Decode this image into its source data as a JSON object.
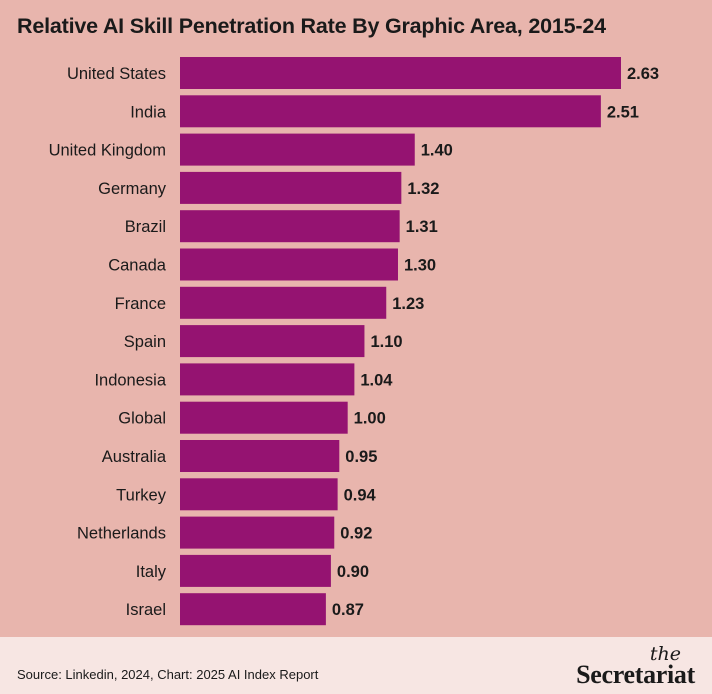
{
  "chart_data": {
    "type": "bar",
    "orientation": "horizontal",
    "title": "Relative AI Skill Penetration Rate By Graphic Area, 2015-24",
    "categories": [
      "United States",
      "India",
      "United Kingdom",
      "Germany",
      "Brazil",
      "Canada",
      "France",
      "Spain",
      "Indonesia",
      "Global",
      "Australia",
      "Turkey",
      "Netherlands",
      "Italy",
      "Israel"
    ],
    "values": [
      2.63,
      2.51,
      1.4,
      1.32,
      1.31,
      1.3,
      1.23,
      1.1,
      1.04,
      1.0,
      0.95,
      0.94,
      0.92,
      0.9,
      0.87
    ],
    "value_labels": [
      "2.63",
      "2.51",
      "1.40",
      "1.32",
      "1.31",
      "1.30",
      "1.23",
      "1.10",
      "1.04",
      "1.00",
      "0.95",
      "0.94",
      "0.92",
      "0.90",
      "0.87"
    ],
    "xlim": [
      0,
      2.63
    ],
    "grid": false,
    "bar_color": "#951371",
    "background_color": "#e8b5ad"
  },
  "footer": {
    "source": "Source: Linkedin, 2024, Chart: 2025 AI Index Report",
    "logo_small": "the",
    "logo_main": "Secretariat"
  }
}
